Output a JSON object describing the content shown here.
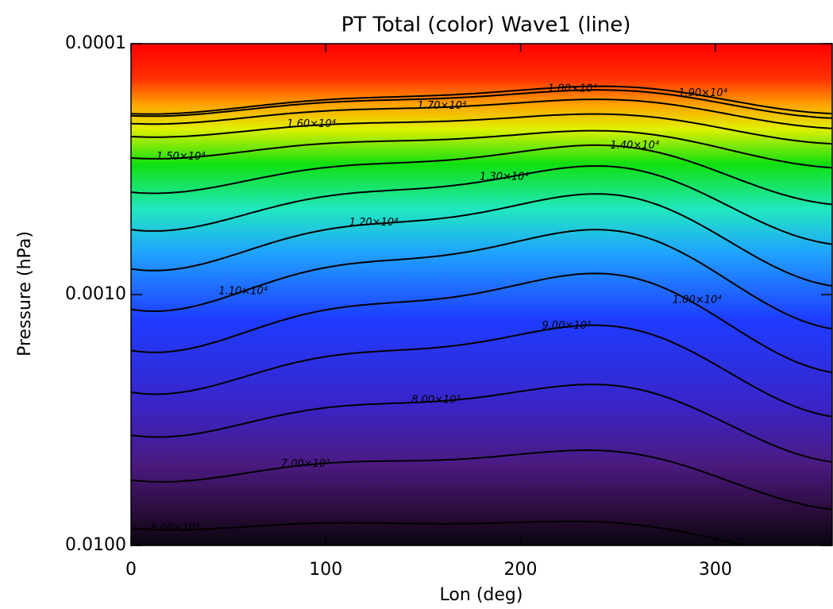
{
  "chart_data": {
    "type": "contour",
    "title": "PT Total (color) Wave1 (line)",
    "x_label": "Lon (deg)",
    "y_label": "Pressure (hPa)",
    "xlim": [
      0,
      360
    ],
    "xticks": [
      0,
      100,
      200,
      300
    ],
    "ylim": [
      0.0001,
      0.01
    ],
    "yticks": [
      0.0001,
      {
        "value": 0.001,
        "label": "0.0010"
      },
      {
        "value": 0.01,
        "label": "0.0100"
      }
    ],
    "y_scale": "log",
    "y_inverted": true,
    "line_color": "#000000",
    "contour_levels": [
      {
        "value": 6000,
        "label": "6.00×10³"
      },
      {
        "value": 7000,
        "label": "7.00×10³"
      },
      {
        "value": 8000,
        "label": "8.00×10³"
      },
      {
        "value": 9000,
        "label": "9.00×10³"
      },
      {
        "value": 10000,
        "label": "1.00×10⁴"
      },
      {
        "value": 11000,
        "label": "1.10×10⁴"
      },
      {
        "value": 12000,
        "label": "1.20×10⁴"
      },
      {
        "value": 13000,
        "label": "1.30×10⁴"
      },
      {
        "value": 14000,
        "label": "1.40×10⁴"
      },
      {
        "value": 15000,
        "label": "1.50×10⁴"
      },
      {
        "value": 16000,
        "label": "1.60×10⁴"
      },
      {
        "value": 17000,
        "label": "1.70×10⁴"
      },
      {
        "value": 18000,
        "label": "1.80×10⁴"
      },
      {
        "value": 19000,
        "label": "1.90×10⁴"
      }
    ]
  }
}
